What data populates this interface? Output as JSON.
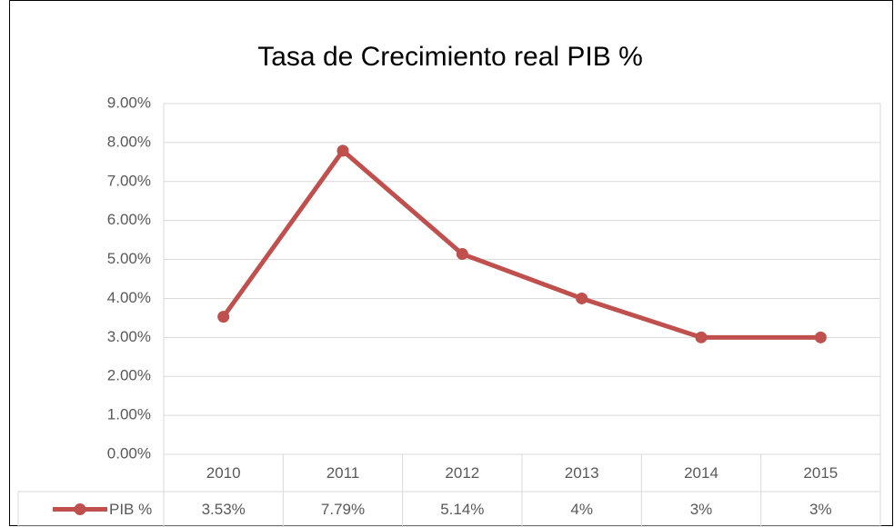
{
  "chart_data": {
    "type": "line",
    "title": "Tasa de Crecimiento real PIB %",
    "categories": [
      "2010",
      "2011",
      "2012",
      "2013",
      "2014",
      "2015"
    ],
    "series": [
      {
        "name": "PIB %",
        "color": "#c0504d",
        "values": [
          3.53,
          7.79,
          5.14,
          4,
          3,
          3
        ],
        "value_labels": [
          "3.53%",
          "7.79%",
          "5.14%",
          "4%",
          "3%",
          "3%"
        ]
      }
    ],
    "ylim": [
      0,
      9
    ],
    "yticks": [
      {
        "value": 0,
        "label": "0.00%"
      },
      {
        "value": 1,
        "label": "1.00%"
      },
      {
        "value": 2,
        "label": "2.00%"
      },
      {
        "value": 3,
        "label": "3.00%"
      },
      {
        "value": 4,
        "label": "4.00%"
      },
      {
        "value": 5,
        "label": "5.00%"
      },
      {
        "value": 6,
        "label": "6.00%"
      },
      {
        "value": 7,
        "label": "7.00%"
      },
      {
        "value": 8,
        "label": "8.00%"
      },
      {
        "value": 9,
        "label": "9.00%"
      }
    ],
    "grid": true
  }
}
